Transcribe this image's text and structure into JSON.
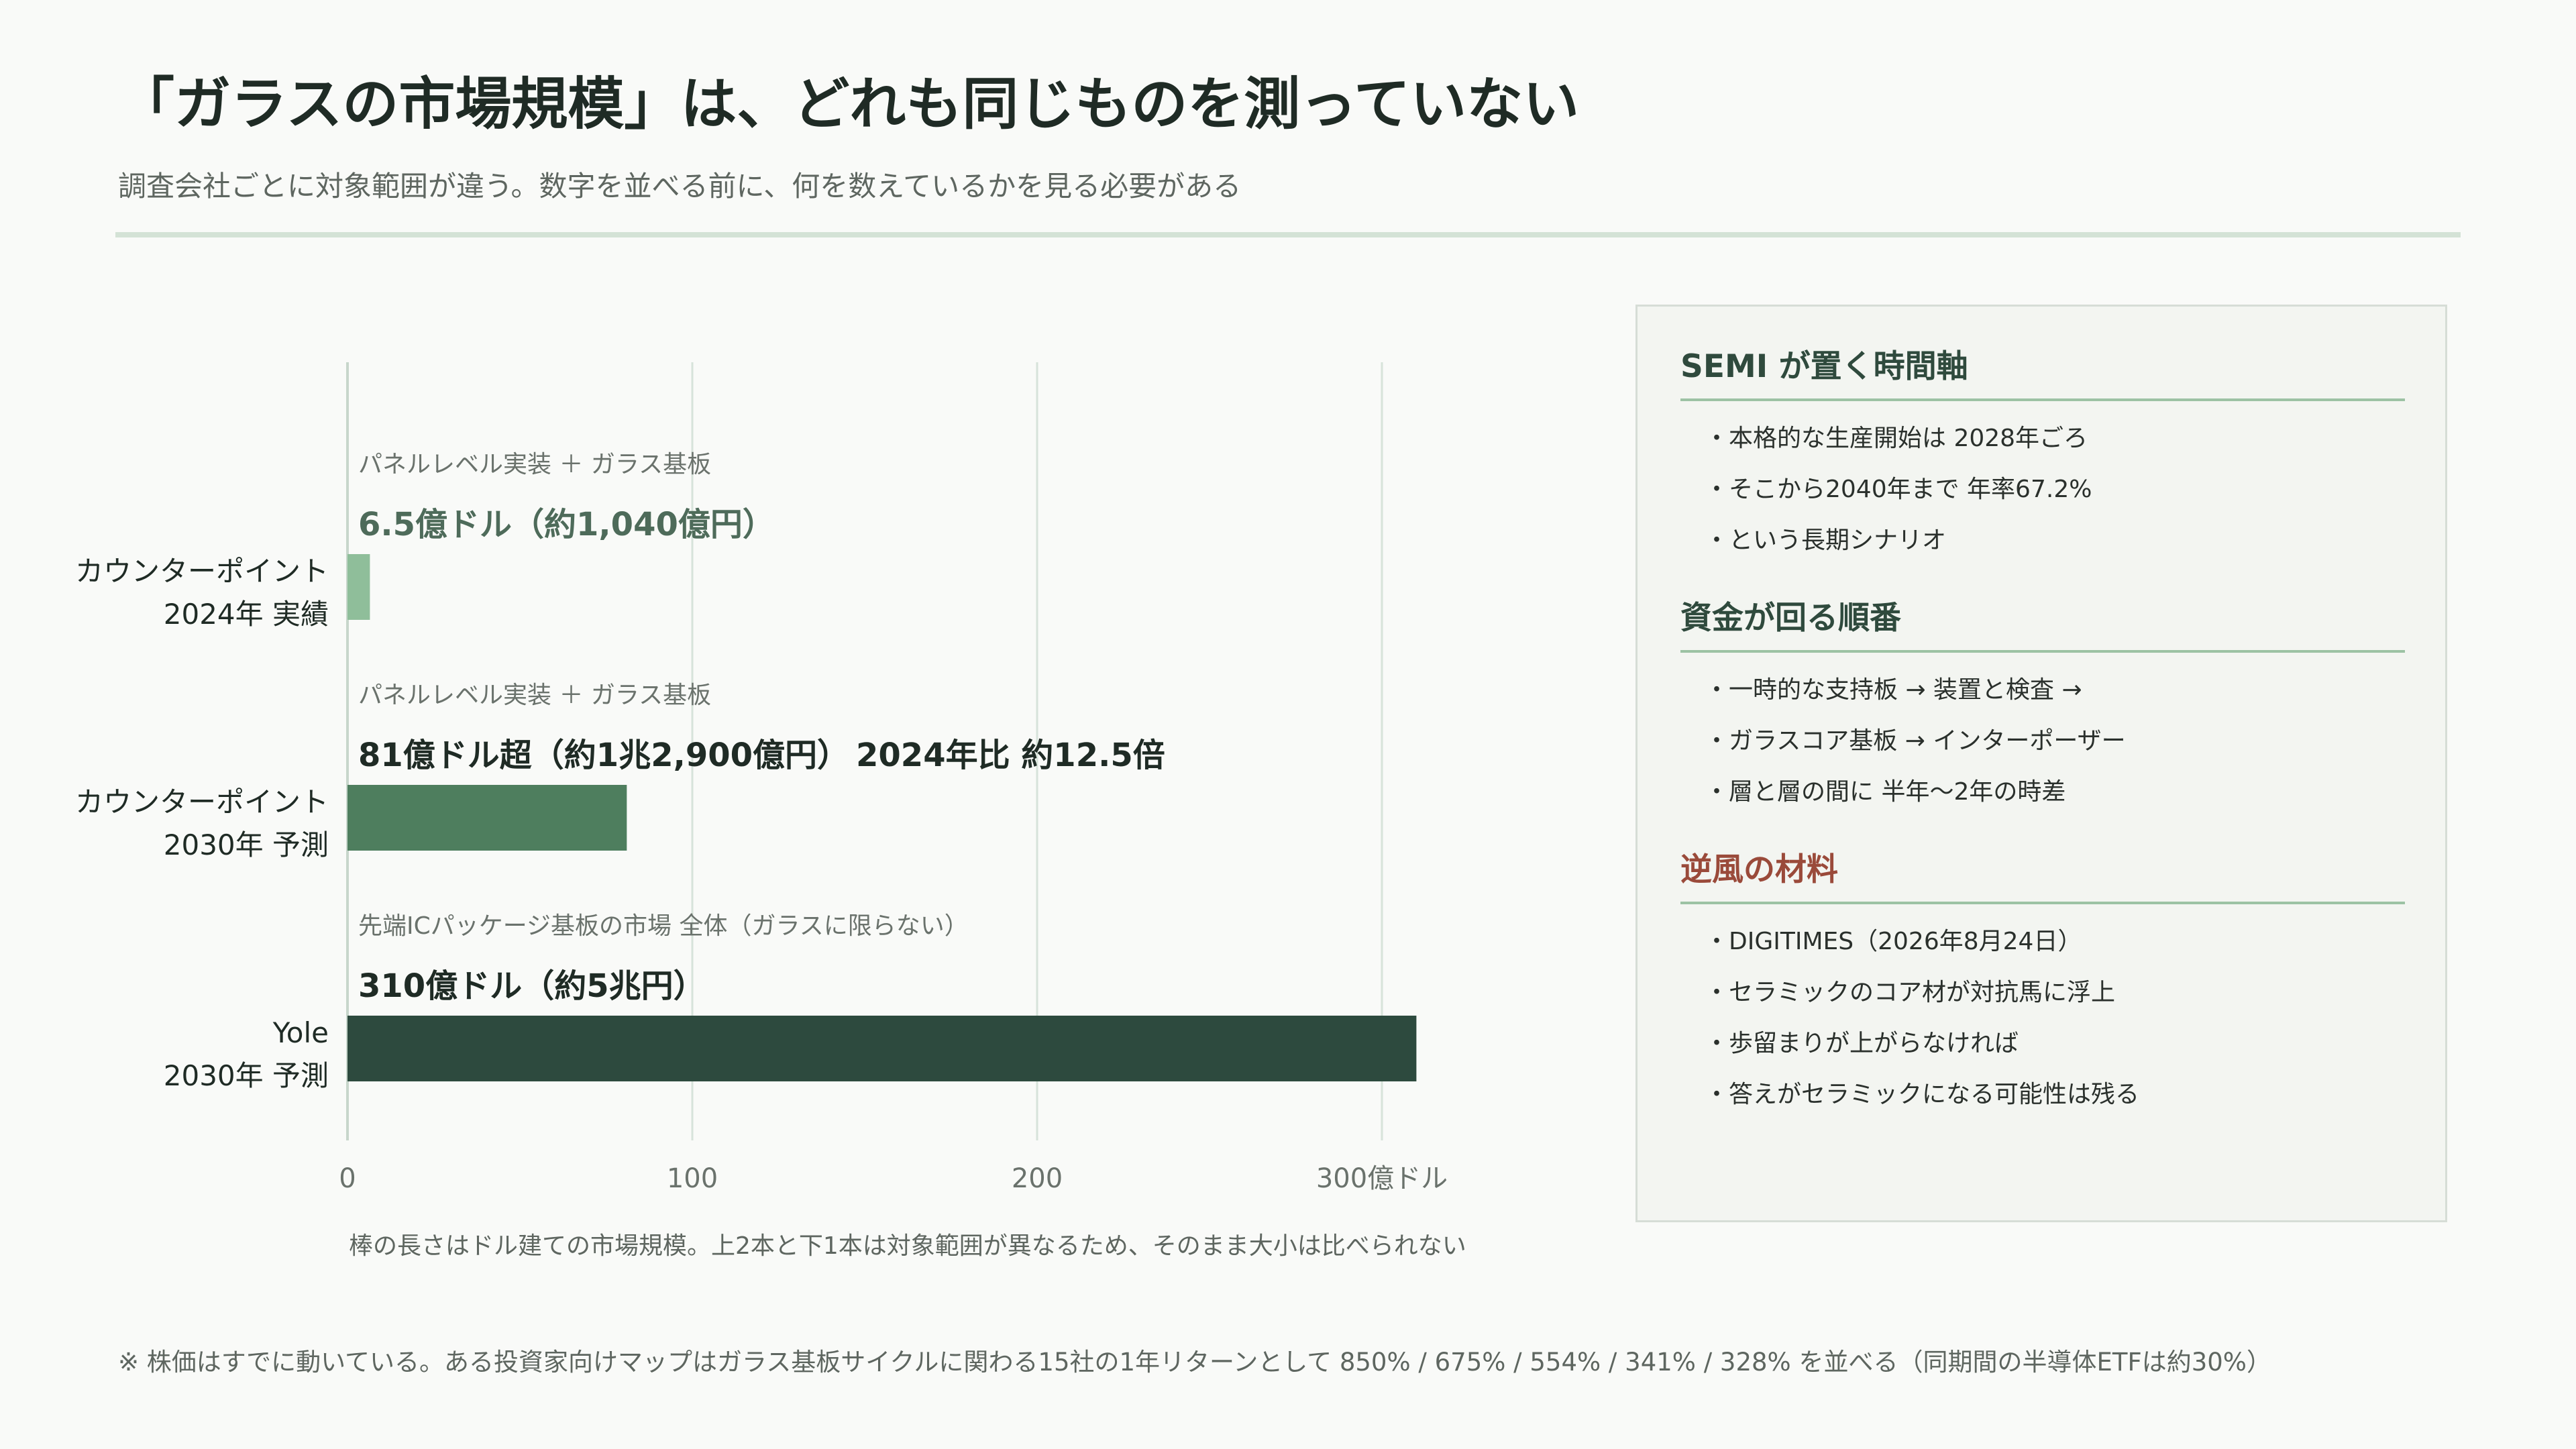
{
  "header": {
    "title": "「ガラスの市場規模」は、どれも同じものを測っていない",
    "subtitle": "調査会社ごとに対象範囲が違う。数字を並べる前に、何を数えているかを見る必要がある"
  },
  "chart_data": {
    "type": "bar",
    "orientation": "horizontal",
    "unit": "億ドル",
    "xlim": [
      0,
      300
    ],
    "xticks": [
      "0",
      "100",
      "200",
      "300億ドル"
    ],
    "xtick_values": [
      0,
      100,
      200,
      300
    ],
    "grid": true,
    "bars": [
      {
        "label_line1": "カウンターポイント",
        "label_line2": "2024年 実績",
        "scope": "パネルレベル実装 ＋ ガラス基板",
        "value": 6.5,
        "value_label": "6.5億ドル（約1,040億円）",
        "extra_label": "",
        "color": "#8fbe9a",
        "value_label_color": "#4e6b5a"
      },
      {
        "label_line1": "カウンターポイント",
        "label_line2": "2030年 予測",
        "scope": "パネルレベル実装 ＋ ガラス基板",
        "value": 81,
        "value_label": "81億ドル超（約1兆2,900億円）",
        "extra_label": "2024年比 約12.5倍",
        "color": "#4e7e5e",
        "value_label_color": "#1f2b25"
      },
      {
        "label_line1": "Yole",
        "label_line2": "2030年 予測",
        "scope": "先端ICパッケージ基板の市場 全体（ガラスに限らない）",
        "value": 310,
        "value_label": "310億ドル（約5兆円）",
        "extra_label": "",
        "color": "#2d4a3e",
        "value_label_color": "#1f2b25"
      }
    ],
    "caption": "棒の長さはドル建ての市場規模。上2本と下1本は対象範囲が異なるため、そのまま大小は比べられない"
  },
  "panel": {
    "sections": [
      {
        "title": "SEMI が置く時間軸",
        "items": [
          "・本格的な生産開始は 2028年ごろ",
          "・そこから2040年まで 年率67.2%",
          "・という長期シナリオ"
        ]
      },
      {
        "title": "資金が回る順番",
        "items": [
          "・一時的な支持板 → 装置と検査 →",
          "・ガラスコア基板 → インターポーザー",
          "・層と層の間に 半年〜2年の時差"
        ]
      },
      {
        "title": "逆風の材料",
        "items": [
          "・DIGITIMES（2026年8月24日）",
          "・セラミックのコア材が対抗馬に浮上",
          "・歩留まりが上がらなければ",
          "・答えがセラミックになる可能性は残る"
        ]
      }
    ]
  },
  "footnote": "※ 株価はすでに動いている。ある投資家向けマップはガラス基板サイクルに関わる15社の1年リターンとして 850% / 675% / 554% / 341% / 328% を並べる（同期間の半導体ETFは約30%）"
}
